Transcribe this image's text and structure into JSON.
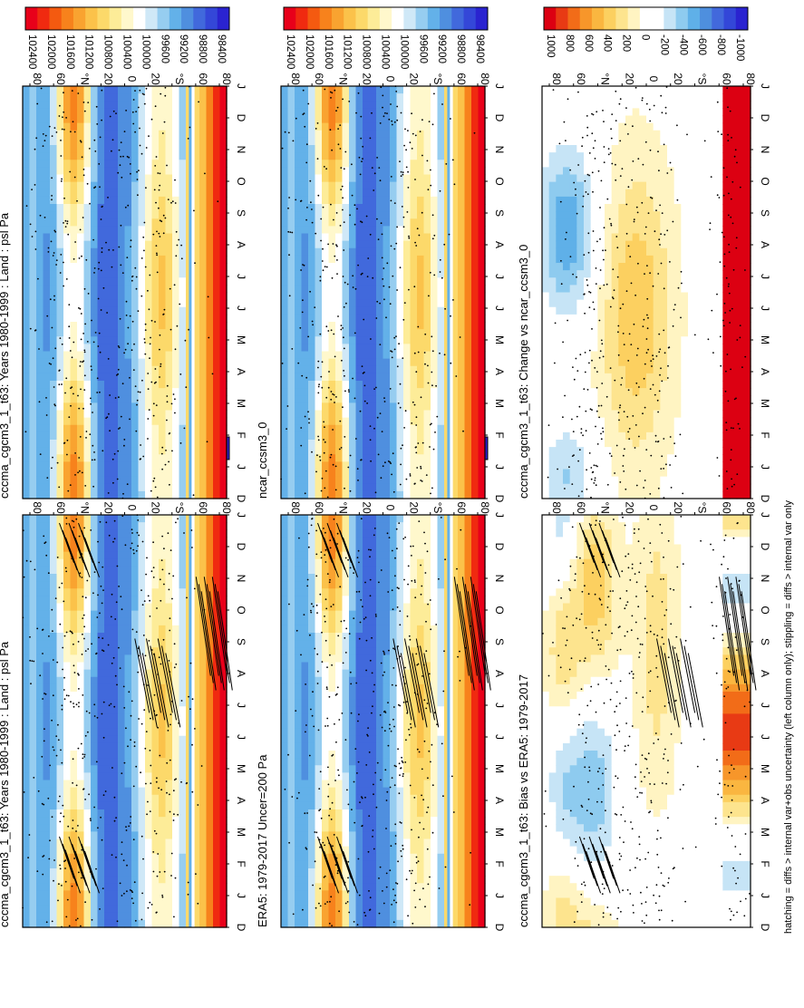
{
  "footer_note": "hatching = diffs > internal var+obs uncertainty (left column only); stippling = diffs > internal var only",
  "colors": {
    "abs_cmap": [
      "#e8001a",
      "#f02a10",
      "#f45a10",
      "#f7821c",
      "#f9a330",
      "#fbc24a",
      "#fcd96a",
      "#fdec98",
      "#fff8cc",
      "#ffffff",
      "#cfe8f7",
      "#96cdf0",
      "#63b1e9",
      "#4f8fdf",
      "#4169dc",
      "#3447d8",
      "#2a23d0"
    ],
    "diff_cmap": [
      "#dc0012",
      "#e83a14",
      "#f26c18",
      "#f7962a",
      "#fab640",
      "#fcd060",
      "#fde48e",
      "#fff4c2",
      "#ffffff",
      "#ffffff",
      "#c6e4f6",
      "#8ecbef",
      "#5fb0e8",
      "#4e8fde",
      "#4269dc",
      "#3347d8",
      "#2a23d0"
    ]
  },
  "chart_data": [
    {
      "id": "top-left",
      "type": "heatmap",
      "title": "cccma_cgcm3_1_t63: Years 1980-1999 : Land : psl Pa",
      "x_ticks": [
        "D",
        "J",
        "F",
        "M",
        "A",
        "M",
        "J",
        "J",
        "A",
        "S",
        "O",
        "N",
        "D",
        "J"
      ],
      "y_ticks": [
        "80",
        "60",
        "°N",
        "20",
        "0",
        "20",
        "°S",
        "60",
        "80"
      ],
      "colorbar": {
        "labels": [
          "102400",
          "102000",
          "101600",
          "101200",
          "100800",
          "100400",
          "100000",
          "99600",
          "99200",
          "98800",
          "98400"
        ],
        "range": [
          98400,
          102400
        ]
      },
      "field": "absolute",
      "hatching": true,
      "stippling": true
    },
    {
      "id": "top-right",
      "type": "heatmap",
      "title": "cccma_cgcm3_1_t63: Years 1980-1999 : Land : psl Pa",
      "x_ticks": [
        "D",
        "J",
        "F",
        "M",
        "A",
        "M",
        "J",
        "J",
        "A",
        "S",
        "O",
        "N",
        "D",
        "J"
      ],
      "y_ticks": [
        "80",
        "60",
        "°N",
        "20",
        "0",
        "20",
        "°S",
        "60",
        "80"
      ],
      "colorbar": {
        "labels": [
          "102400",
          "102000",
          "101600",
          "101200",
          "100800",
          "100400",
          "100000",
          "99600",
          "99200",
          "98800",
          "98400"
        ],
        "range": [
          98400,
          102400
        ]
      },
      "field": "absolute",
      "hatching": false,
      "stippling": true
    },
    {
      "id": "mid-left",
      "type": "heatmap",
      "title": "ERA5: 1979-2017 Uncer=200 Pa",
      "x_ticks": [
        "D",
        "J",
        "F",
        "M",
        "A",
        "M",
        "J",
        "J",
        "A",
        "S",
        "O",
        "N",
        "D",
        "J"
      ],
      "y_ticks": [
        "80",
        "60",
        "°N",
        "20",
        "0",
        "20",
        "°S",
        "60",
        "80"
      ],
      "colorbar": {
        "labels": [
          "102400",
          "102000",
          "101600",
          "101200",
          "100800",
          "100400",
          "100000",
          "99600",
          "99200",
          "98800",
          "98400"
        ],
        "range": [
          98400,
          102400
        ]
      },
      "field": "absolute",
      "hatching": true,
      "stippling": true
    },
    {
      "id": "mid-right",
      "type": "heatmap",
      "title": "ncar_ccsm3_0",
      "x_ticks": [
        "D",
        "J",
        "F",
        "M",
        "A",
        "M",
        "J",
        "J",
        "A",
        "S",
        "O",
        "N",
        "D",
        "J"
      ],
      "y_ticks": [
        "80",
        "60",
        "°N",
        "20",
        "0",
        "20",
        "°S",
        "60",
        "80"
      ],
      "colorbar": {
        "labels": [
          "102400",
          "102000",
          "101600",
          "101200",
          "100800",
          "100400",
          "100000",
          "99600",
          "99200",
          "98800",
          "98400"
        ],
        "range": [
          98400,
          102400
        ]
      },
      "field": "absolute",
      "hatching": false,
      "stippling": true
    },
    {
      "id": "bottom-left",
      "type": "heatmap",
      "title": "cccma_cgcm3_1_t63: Bias vs ERA5: 1979-2017",
      "x_ticks": [
        "D",
        "J",
        "F",
        "M",
        "A",
        "M",
        "J",
        "J",
        "A",
        "S",
        "O",
        "N",
        "D",
        "J"
      ],
      "y_ticks": [
        "80",
        "60",
        "°N",
        "20",
        "0",
        "20",
        "°S",
        "60",
        "80"
      ],
      "colorbar": {
        "labels": [
          "1000",
          "800",
          "600",
          "400",
          "200",
          "0",
          "-200",
          "-400",
          "-600",
          "-800",
          "-1000"
        ],
        "range": [
          -1000,
          1000
        ]
      },
      "field": "bias",
      "hatching": true,
      "stippling": true
    },
    {
      "id": "bottom-right",
      "type": "heatmap",
      "title": "cccma_cgcm3_1_t63: Change vs ncar_ccsm3_0",
      "x_ticks": [
        "D",
        "J",
        "F",
        "M",
        "A",
        "M",
        "J",
        "J",
        "A",
        "S",
        "O",
        "N",
        "D",
        "J"
      ],
      "y_ticks": [
        "80",
        "60",
        "°N",
        "20",
        "0",
        "20",
        "°S",
        "60",
        "80"
      ],
      "colorbar": {
        "labels": [
          "1000",
          "800",
          "600",
          "400",
          "200",
          "0",
          "-200",
          "-400",
          "-600",
          "-800",
          "-1000"
        ],
        "range": [
          -1000,
          1000
        ]
      },
      "field": "change",
      "hatching": false,
      "stippling": true
    }
  ]
}
